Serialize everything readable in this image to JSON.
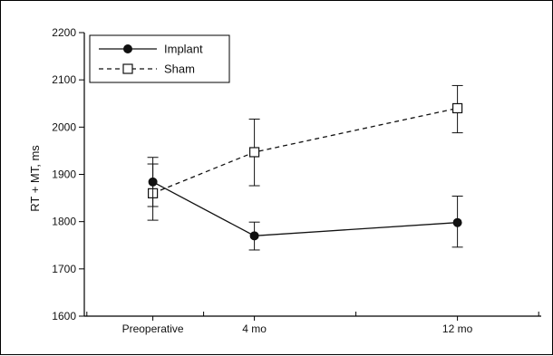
{
  "chart_data": {
    "type": "line",
    "categories": [
      "Preoperative",
      "4 mo",
      "12 mo"
    ],
    "x_positions": [
      0,
      4,
      12
    ],
    "xlim": [
      -2.7,
      15.3
    ],
    "ylim": [
      1600,
      2200
    ],
    "yticks": [
      1600,
      1700,
      1800,
      1900,
      2000,
      2100,
      2200
    ],
    "xlabel": "",
    "ylabel": "RT + MT, ms",
    "grid": false,
    "legend_position": "top-left",
    "series": [
      {
        "name": "Implant",
        "marker": "filled-circle",
        "line_style": "solid",
        "color": "#111111",
        "values": [
          1884,
          1770,
          1798
        ],
        "error_low": [
          1832,
          1740,
          1746
        ],
        "error_high": [
          1936,
          1799,
          1854
        ]
      },
      {
        "name": "Sham",
        "marker": "open-square",
        "line_style": "dashed",
        "color": "#111111",
        "values": [
          1860,
          1947,
          2040
        ],
        "error_low": [
          1803,
          1876,
          1988
        ],
        "error_high": [
          1922,
          2017,
          2088
        ]
      }
    ]
  }
}
